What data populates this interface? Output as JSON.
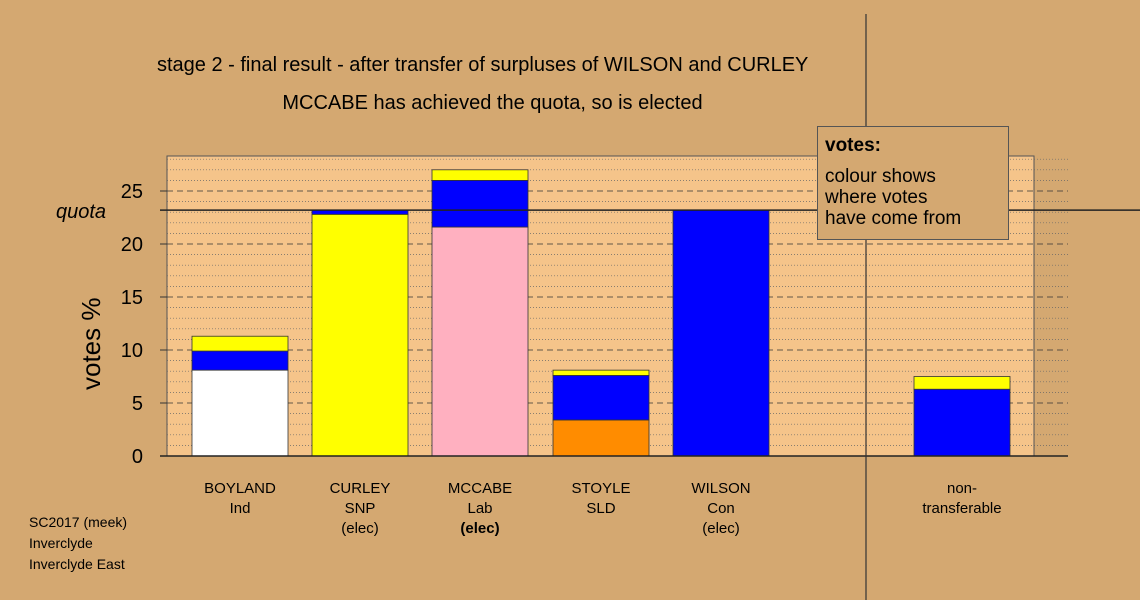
{
  "chart_data": {
    "type": "bar",
    "stacked": true,
    "title": "stage 2 - final result - after transfer of surpluses of WILSON and CURLEY",
    "subtitle": "MCCABE has achieved the quota, so is elected",
    "ylabel": "votes %",
    "ylim": [
      0,
      28
    ],
    "yticks": [
      0,
      5,
      10,
      15,
      20,
      25
    ],
    "quota": 23.2,
    "quota_label": "quota",
    "categories": [
      {
        "name": "BOYLAND",
        "party": "Ind",
        "status": ""
      },
      {
        "name": "CURLEY",
        "party": "SNP",
        "status": "(elec)"
      },
      {
        "name": "MCCABE",
        "party": "Lab",
        "status": "(elec)"
      },
      {
        "name": "STOYLE",
        "party": "SLD",
        "status": ""
      },
      {
        "name": "WILSON",
        "party": "Con",
        "status": "(elec)"
      },
      {
        "name": "non-",
        "party": "transferable",
        "status": ""
      }
    ],
    "stacks": [
      [
        {
          "value": 8.1,
          "color": "#ffffff"
        },
        {
          "value": 1.8,
          "color": "#0000ff"
        },
        {
          "value": 1.4,
          "color": "#ffff00"
        }
      ],
      [
        {
          "value": 22.8,
          "color": "#ffff00"
        },
        {
          "value": 0.4,
          "color": "#0000ff"
        }
      ],
      [
        {
          "value": 21.6,
          "color": "#ffb0c0"
        },
        {
          "value": 4.4,
          "color": "#0000ff"
        },
        {
          "value": 1.0,
          "color": "#ffff00"
        }
      ],
      [
        {
          "value": 3.4,
          "color": "#ff8c00"
        },
        {
          "value": 4.2,
          "color": "#0000ff"
        },
        {
          "value": 0.5,
          "color": "#ffff00"
        }
      ],
      [
        {
          "value": 23.2,
          "color": "#0000ff"
        }
      ],
      [
        {
          "value": 6.3,
          "color": "#0000ff"
        },
        {
          "value": 1.2,
          "color": "#ffff00"
        }
      ]
    ],
    "grid": "dashed-horizontal",
    "legend": {
      "title": "votes:",
      "lines": [
        "colour shows",
        "where votes",
        "have come from"
      ],
      "position": "top-right"
    }
  },
  "footer": [
    "SC2017 (meek)",
    "Inverclyde",
    "Inverclyde East"
  ]
}
